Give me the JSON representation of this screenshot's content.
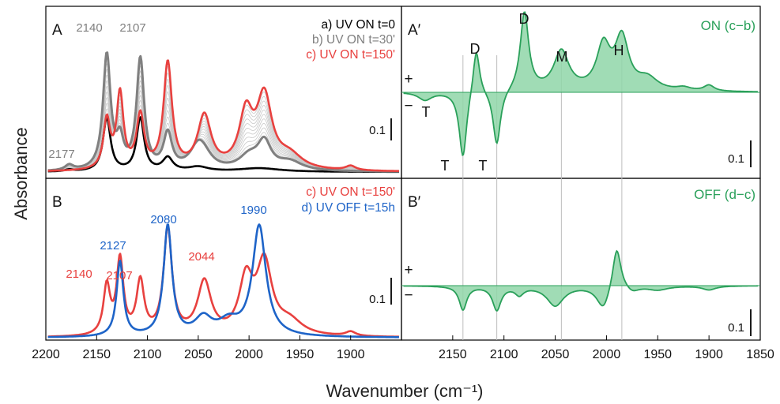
{
  "figure": {
    "ylabel": "Absorbance",
    "xlabel": "Wavenumber (cm⁻¹)",
    "colors": {
      "a": "#000000",
      "b": "#808080",
      "c": "#e8413f",
      "d": "#1e64c8",
      "diff": "#2aa05a",
      "diff_fill": "#8fd6a8",
      "fan": "#c8c8c8"
    }
  },
  "chart_data": [
    {
      "id": "A",
      "type": "line",
      "panel_label": "A",
      "xlim": [
        2200,
        1850
      ],
      "legend": [
        "a) UV ON t=0",
        "b) UV ON t=30'",
        "c) UV ON t=150'"
      ],
      "scale_bar": "0.1",
      "peak_labels": [
        {
          "text": "2177",
          "x": 2177
        },
        {
          "text": "2140",
          "x": 2140
        },
        {
          "text": "2107",
          "x": 2107
        }
      ],
      "series": [
        {
          "name": "a) UV ON t=0",
          "color": "#000000",
          "peaks": [
            [
              2177,
              0.004,
              5
            ],
            [
              2140,
              0.12,
              4.5
            ],
            [
              2107,
              0.12,
              4.5
            ],
            [
              2080,
              0.03,
              6
            ],
            [
              2050,
              0.01,
              12
            ],
            [
              1990,
              0.008,
              25
            ]
          ]
        },
        {
          "name": "b) UV ON t=30'",
          "color": "#808080",
          "peaks": [
            [
              2177,
              0.012,
              5
            ],
            [
              2140,
              0.26,
              4.5
            ],
            [
              2107,
              0.25,
              4.5
            ],
            [
              2127,
              0.06,
              4
            ],
            [
              2080,
              0.08,
              5
            ],
            [
              2050,
              0.05,
              10
            ],
            [
              2044,
              0.02,
              10
            ],
            [
              2000,
              0.03,
              12
            ],
            [
              1985,
              0.06,
              8
            ],
            [
              1960,
              0.02,
              15
            ]
          ]
        },
        {
          "name": "c) UV ON t=150'",
          "color": "#e8413f",
          "peaks": [
            [
              2140,
              0.11,
              4
            ],
            [
              2127,
              0.17,
              4
            ],
            [
              2107,
              0.12,
              4.5
            ],
            [
              2080,
              0.24,
              5
            ],
            [
              2044,
              0.12,
              8
            ],
            [
              2003,
              0.12,
              8
            ],
            [
              1985,
              0.16,
              9
            ],
            [
              1960,
              0.03,
              15
            ],
            [
              1900,
              0.01,
              6
            ]
          ]
        }
      ]
    },
    {
      "id": "B",
      "type": "line",
      "panel_label": "B",
      "xlim": [
        2200,
        1850
      ],
      "xticks": [
        2200,
        2150,
        2100,
        2050,
        2000,
        1950,
        1900
      ],
      "legend": [
        "c) UV ON t=150'",
        "d) UV OFF t=15h"
      ],
      "scale_bar": "0.1",
      "peak_labels": [
        {
          "text": "2140",
          "x": 2140,
          "series": "c"
        },
        {
          "text": "2107",
          "x": 2107,
          "series": "c"
        },
        {
          "text": "2044",
          "x": 2044,
          "series": "c"
        },
        {
          "text": "2127",
          "x": 2127,
          "series": "d"
        },
        {
          "text": "2080",
          "x": 2080,
          "series": "d"
        },
        {
          "text": "1990",
          "x": 1990,
          "series": "d"
        }
      ],
      "series": [
        {
          "name": "c) UV ON t=150'",
          "color": "#e8413f",
          "peaks": [
            [
              2140,
              0.11,
              4
            ],
            [
              2127,
              0.17,
              4
            ],
            [
              2107,
              0.12,
              4.5
            ],
            [
              2080,
              0.24,
              5
            ],
            [
              2044,
              0.12,
              8
            ],
            [
              2003,
              0.12,
              8
            ],
            [
              1985,
              0.16,
              9
            ],
            [
              1960,
              0.03,
              15
            ],
            [
              1900,
              0.01,
              6
            ]
          ]
        },
        {
          "name": "d) UV OFF t=15h",
          "color": "#1e64c8",
          "peaks": [
            [
              2127,
              0.17,
              4
            ],
            [
              2080,
              0.25,
              5
            ],
            [
              2045,
              0.04,
              10
            ],
            [
              2020,
              0.03,
              12
            ],
            [
              1990,
              0.25,
              8
            ]
          ]
        }
      ]
    },
    {
      "id": "A'",
      "type": "area",
      "panel_label": "A′",
      "xlim": [
        2200,
        1850
      ],
      "legend": [
        "ON (c−b)"
      ],
      "scale_bar": "0.1",
      "sign_labels": [
        "+",
        "−"
      ],
      "band_labels": [
        {
          "text": "D",
          "x": 2127
        },
        {
          "text": "D",
          "x": 2080
        },
        {
          "text": "M",
          "x": 2044
        },
        {
          "text": "H",
          "x": 1985
        },
        {
          "text": "T",
          "x": 2177
        },
        {
          "text": "T",
          "x": 2140
        },
        {
          "text": "T",
          "x": 2107
        }
      ],
      "series": [
        {
          "color": "#2aa05a",
          "peaks": [
            [
              2177,
              -0.02,
              8
            ],
            [
              2140,
              -0.17,
              4.5
            ],
            [
              2107,
              -0.14,
              4.5
            ],
            [
              2127,
              0.12,
              4
            ],
            [
              2080,
              0.2,
              5
            ],
            [
              2044,
              0.1,
              9
            ],
            [
              2003,
              0.11,
              8
            ],
            [
              1985,
              0.13,
              8
            ],
            [
              1960,
              0.03,
              12
            ],
            [
              1925,
              0.008,
              8
            ],
            [
              1900,
              0.015,
              6
            ]
          ]
        }
      ]
    },
    {
      "id": "B'",
      "type": "area",
      "panel_label": "B′",
      "xlim": [
        2200,
        1850
      ],
      "xticks": [
        2150,
        2100,
        2050,
        2000,
        1950,
        1900,
        1850
      ],
      "legend": [
        "OFF (d−c)"
      ],
      "scale_bar": "0.1",
      "sign_labels": [
        "+",
        "−"
      ],
      "series": [
        {
          "color": "#2aa05a",
          "peaks": [
            [
              2140,
              -0.06,
              4.5
            ],
            [
              2107,
              -0.06,
              5
            ],
            [
              2085,
              -0.02,
              5
            ],
            [
              2050,
              -0.05,
              10
            ],
            [
              2003,
              -0.06,
              8
            ],
            [
              1990,
              0.11,
              5
            ],
            [
              1975,
              -0.015,
              8
            ],
            [
              1950,
              -0.01,
              12
            ],
            [
              1900,
              -0.01,
              8
            ]
          ]
        }
      ]
    }
  ]
}
